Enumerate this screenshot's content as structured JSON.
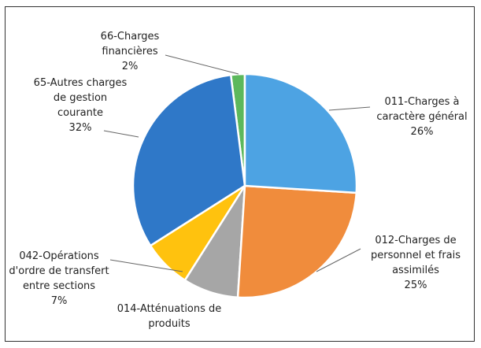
{
  "chart_data": {
    "type": "pie",
    "categories": [
      "011-Charges à caractère général",
      "012-Charges de personnel et frais assimilés",
      "014-Atténuations de produits",
      "042-Opérations d'ordre de transfert entre sections",
      "65-Autres charges de gestion courante",
      "66-Charges financières"
    ],
    "values": [
      26,
      25,
      8,
      7,
      32,
      2
    ],
    "value_labels": [
      "26%",
      "25%",
      null,
      "7%",
      "32%",
      "2%"
    ],
    "colors": [
      "#4da3e3",
      "#f08c3c",
      "#a6a6a6",
      "#ffc20e",
      "#2f78c8",
      "#5cb85c"
    ]
  }
}
